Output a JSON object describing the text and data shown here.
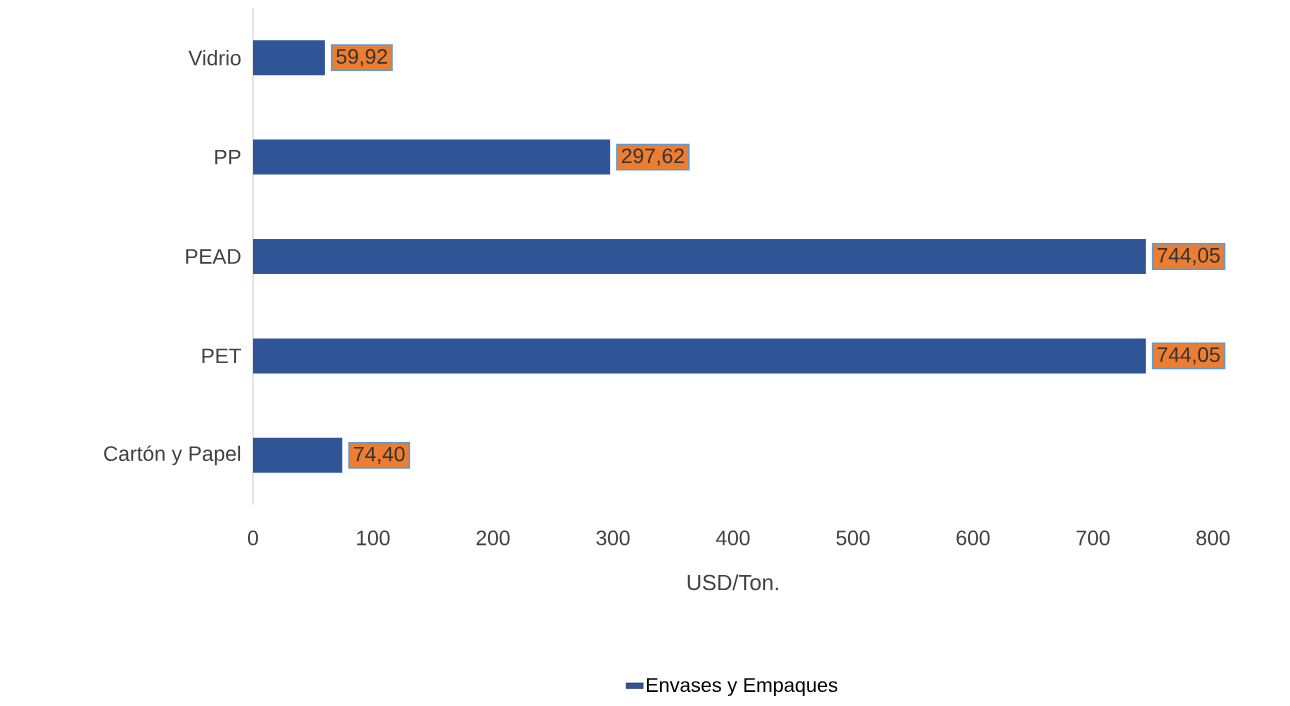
{
  "chart_data": {
    "type": "bar",
    "orientation": "horizontal",
    "xlabel": "USD/Ton.",
    "categories": [
      "Vidrio",
      "PP",
      "PEAD",
      "PET",
      "Cartón y Papel"
    ],
    "series": [
      {
        "name": "Envases y Empaques",
        "color": "#2f5597",
        "values": [
          59.92,
          297.62,
          744.05,
          744.05,
          74.4
        ],
        "value_labels": [
          "59,92",
          "297,62",
          "744,05",
          "744,05",
          "74,40"
        ]
      }
    ],
    "xlim": [
      0,
      800
    ],
    "xticks": [
      0,
      100,
      200,
      300,
      400,
      500,
      600,
      700,
      800
    ],
    "legend": "bottom"
  }
}
